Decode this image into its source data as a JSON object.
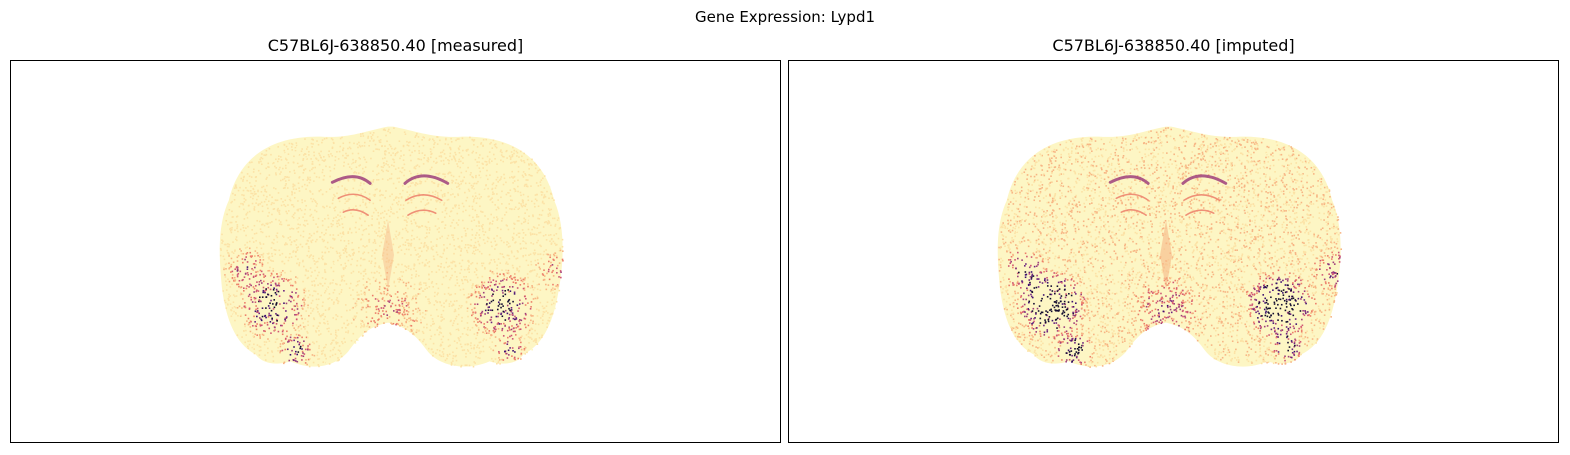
{
  "figure": {
    "suptitle": "Gene Expression: Lypd1"
  },
  "panels": [
    {
      "title": "C57BL6J-638850.40 [measured]",
      "intensity": 0.35
    },
    {
      "title": "C57BL6J-638850.40 [imputed]",
      "intensity": 0.7
    }
  ],
  "colors": {
    "colormap": [
      "#fdf6c4",
      "#fce2a6",
      "#f7b584",
      "#ec7e6a",
      "#cf5675",
      "#9e3f7c",
      "#6b2380",
      "#3b0f70",
      "#120c30"
    ],
    "axes_frame": "#000000",
    "background": "#ffffff"
  }
}
